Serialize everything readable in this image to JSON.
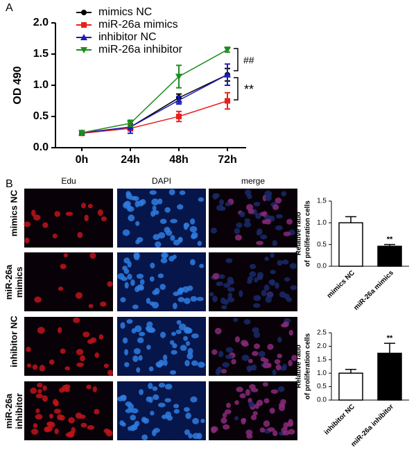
{
  "panel_labels": [
    "A",
    "B"
  ],
  "image_grid": {
    "columns": [
      "Edu",
      "DAPI",
      "merge"
    ],
    "rows": [
      "mimics NC",
      "miR-26a mimics",
      "inhibitor NC",
      "miR-26a inhibitor"
    ]
  },
  "chart_data": [
    {
      "type": "line",
      "ylabel": "OD 490",
      "categories": [
        "0h",
        "24h",
        "48h",
        "72h"
      ],
      "series": [
        {
          "name": "mimics NC",
          "color": "#000000",
          "marker": "circle",
          "values": [
            0.23,
            0.33,
            0.8,
            1.17
          ],
          "errors": [
            0.03,
            0.05,
            0.06,
            0.1
          ]
        },
        {
          "name": "miR-26a mimics",
          "color": "#e8201c",
          "marker": "square",
          "values": [
            0.23,
            0.31,
            0.5,
            0.75
          ],
          "errors": [
            0.03,
            0.04,
            0.08,
            0.13
          ]
        },
        {
          "name": "inhibitor NC",
          "color": "#1d1db8",
          "marker": "triangle-up",
          "values": [
            0.24,
            0.33,
            0.76,
            1.17
          ],
          "errors": [
            0.03,
            0.1,
            0.06,
            0.17
          ]
        },
        {
          "name": "miR-26a inhibitor",
          "color": "#1e8c1e",
          "marker": "triangle-down",
          "values": [
            0.24,
            0.39,
            1.14,
            1.57
          ],
          "errors": [
            0.03,
            0.05,
            0.18,
            0.04
          ]
        }
      ],
      "ylim": [
        0,
        2
      ],
      "yticks": [
        {
          "value": 0,
          "label": "0.0"
        },
        {
          "value": 0.5,
          "label": "0.5"
        },
        {
          "value": 1,
          "label": "1.0"
        },
        {
          "value": 1.5,
          "label": "1.5"
        },
        {
          "value": 2,
          "label": "2.0"
        }
      ],
      "annotations": [
        "##",
        "**"
      ]
    },
    {
      "type": "bar",
      "ylabel": [
        "Relative ratio",
        "of proliferation cells"
      ],
      "categories": [
        "mimics NC",
        "miR-26a mimics"
      ],
      "values": [
        1.0,
        0.46
      ],
      "errors": [
        0.14,
        0.04
      ],
      "colors": [
        "#ffffff",
        "#000000"
      ],
      "ylim": [
        0,
        1.5
      ],
      "yticks": [
        {
          "value": 0,
          "label": "0.0"
        },
        {
          "value": 0.5,
          "label": "0.5"
        },
        {
          "value": 1,
          "label": "1.0"
        },
        {
          "value": 1.5,
          "label": "1.5"
        }
      ],
      "annotations": [
        "**"
      ]
    },
    {
      "type": "bar",
      "ylabel": [
        "Relative ratio",
        "of proliferation cells"
      ],
      "categories": [
        "inhibitor NC",
        "miR-26a inhibitor"
      ],
      "values": [
        1.0,
        1.74
      ],
      "errors": [
        0.14,
        0.37
      ],
      "colors": [
        "#ffffff",
        "#000000"
      ],
      "ylim": [
        0,
        2.5
      ],
      "yticks": [
        {
          "value": 0,
          "label": "0.0"
        },
        {
          "value": 0.5,
          "label": "0.5"
        },
        {
          "value": 1,
          "label": "1.0"
        },
        {
          "value": 1.5,
          "label": "1.5"
        },
        {
          "value": 2,
          "label": "2.0"
        },
        {
          "value": 2.5,
          "label": "2.5"
        }
      ],
      "annotations": [
        "**"
      ]
    }
  ]
}
